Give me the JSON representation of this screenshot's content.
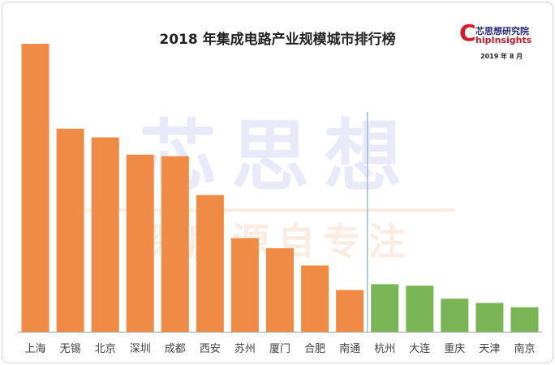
{
  "chart_data": {
    "type": "bar",
    "title": "2018 年集成电路产业规模城市排行榜",
    "categories": [
      "上海",
      "无锡",
      "北京",
      "深圳",
      "成都",
      "西安",
      "苏州",
      "厦门",
      "合肥",
      "南通",
      "杭州",
      "大连",
      "重庆",
      "天津",
      "南京"
    ],
    "values": [
      100,
      70.5,
      67.5,
      61.5,
      61,
      47.5,
      32.5,
      29,
      23,
      14.5,
      16.5,
      16,
      11.5,
      10,
      8.5
    ],
    "bar_colors": [
      "#ef8b45",
      "#ef8b45",
      "#ef8b45",
      "#ef8b45",
      "#ef8b45",
      "#ef8b45",
      "#ef8b45",
      "#ef8b45",
      "#ef8b45",
      "#ef8b45",
      "#79b555",
      "#79b555",
      "#79b555",
      "#79b555",
      "#79b555"
    ],
    "ylim": [
      0,
      100
    ],
    "grid": false,
    "divider_after_index": 9,
    "axis_color": "#a6a6a6",
    "divider_color": "#9fb6d4"
  },
  "logo": {
    "mark": "C",
    "cn_name": "芯思想研究院",
    "en_name": "hipInsights",
    "date": "2019 年 8 月"
  },
  "watermark": {
    "line1": "芯思想",
    "line2": "深度源自专注"
  }
}
